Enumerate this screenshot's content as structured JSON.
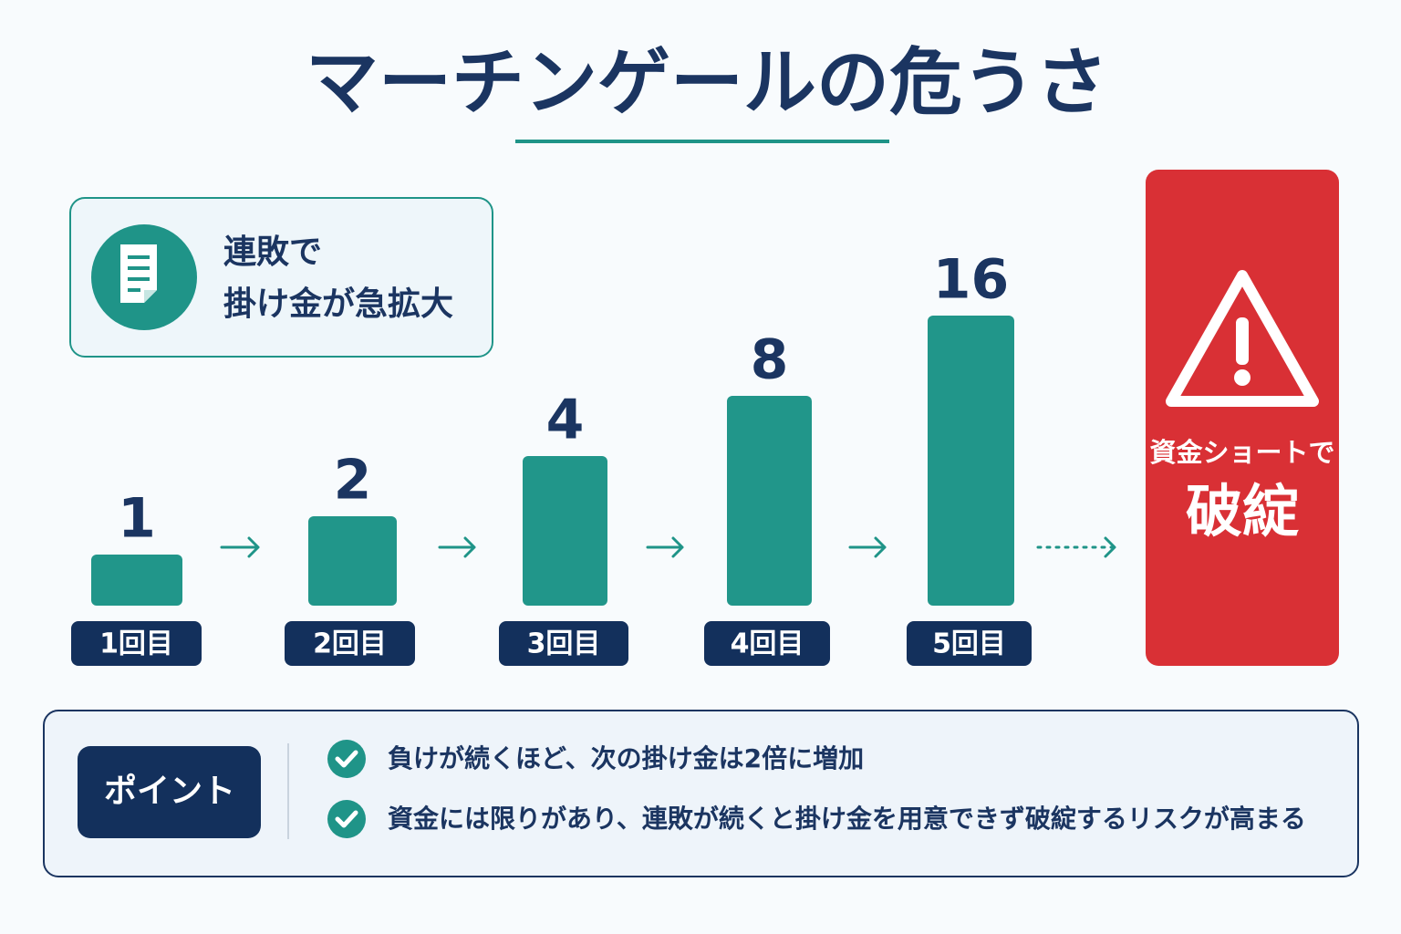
{
  "title": "マーチンゲールの危うさ",
  "callout": {
    "lines": [
      "連敗で",
      "掛け金が急拡大"
    ]
  },
  "steps": [
    {
      "value": 1,
      "label": "1回目"
    },
    {
      "value": 2,
      "label": "2回目"
    },
    {
      "value": 4,
      "label": "3回目"
    },
    {
      "value": 8,
      "label": "4回目"
    },
    {
      "value": 16,
      "label": "5回目"
    }
  ],
  "warning": {
    "line1": "資金ショートで",
    "line2": "破綻"
  },
  "point": {
    "label": "ポイント",
    "items": [
      "負けが続くほど、次の掛け金は2倍に増加",
      "資金には限りがあり、連敗が続くと掛け金を用意できず破綻するリスクが高まる"
    ]
  }
}
